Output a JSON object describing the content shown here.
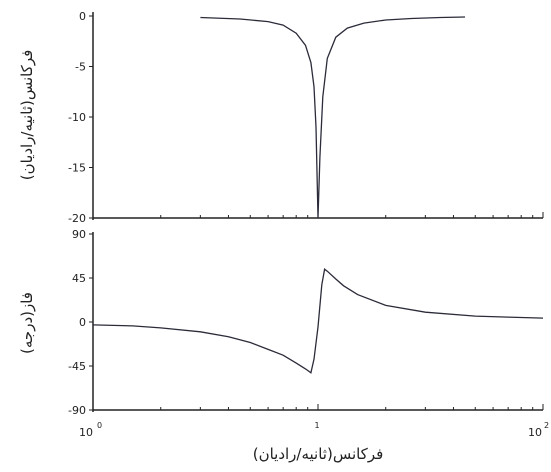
{
  "chart_data": [
    {
      "type": "line",
      "xscale": "log",
      "xlim": [
        1,
        100
      ],
      "ylim": [
        -20,
        0
      ],
      "yticks": [
        0,
        -5,
        -10,
        -15,
        -20
      ],
      "ylabel": "فرکانس(ثانیه/رادیان)",
      "grid": false,
      "series": [
        {
          "x": [
            3.0,
            4.5,
            6.0,
            7.0,
            8.0,
            8.8,
            9.3,
            9.6,
            9.8,
            10.0,
            10.2,
            10.5,
            11.0,
            12.0,
            13.5,
            16.0,
            20.0,
            26.0,
            35.0,
            45.0
          ],
          "values": [
            -0.15,
            -0.3,
            -0.55,
            -0.9,
            -1.7,
            -2.9,
            -4.6,
            -7.0,
            -11.0,
            -20.0,
            -14.0,
            -8.0,
            -4.2,
            -2.1,
            -1.2,
            -0.7,
            -0.4,
            -0.25,
            -0.15,
            -0.1
          ]
        }
      ],
      "color": "#2b2b3a"
    },
    {
      "type": "line",
      "xscale": "log",
      "xlim": [
        1,
        100
      ],
      "ylim": [
        -90,
        90
      ],
      "yticks": [
        90,
        45,
        0,
        -45,
        -90
      ],
      "xtick_labels": [
        "10",
        "0",
        "10",
        "2"
      ],
      "ylabel": "فاز(درجه)",
      "xlabel": "فرکانس(ثانیه/رادیان)",
      "grid": false,
      "series": [
        {
          "x": [
            1.0,
            1.5,
            2.0,
            3.0,
            4.0,
            5.0,
            6.0,
            7.0,
            8.0,
            8.8,
            9.3,
            9.6,
            10.0,
            10.4,
            10.7,
            11.0,
            12.0,
            13.0,
            15.0,
            20.0,
            30.0,
            50.0,
            70.0,
            100.0
          ],
          "values": [
            -3,
            -4,
            -6,
            -10,
            -15,
            -21,
            -28,
            -34,
            -42,
            -48,
            -52,
            -38,
            -5,
            38,
            54,
            52,
            44,
            37,
            28,
            17,
            10,
            6,
            5,
            4
          ]
        }
      ],
      "color": "#2b2b3a"
    }
  ]
}
